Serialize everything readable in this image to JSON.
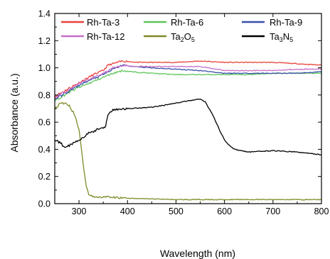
{
  "chart_data": {
    "type": "line",
    "title": "",
    "xlabel": "Wavelength (nm)",
    "ylabel": "Absorbance  (a.u.)",
    "xlim": [
      250,
      800
    ],
    "ylim": [
      0.0,
      1.4
    ],
    "x_ticks": [
      300,
      400,
      500,
      600,
      700,
      800
    ],
    "x_tick_labels": [
      "300",
      "400",
      "500",
      "600",
      "700",
      "800"
    ],
    "y_ticks": [
      0.0,
      0.2,
      0.4,
      0.6,
      0.8,
      1.0,
      1.2,
      1.4
    ],
    "y_tick_labels": [
      "0.0",
      "0.2",
      "0.4",
      "0.6",
      "0.8",
      "1.0",
      "1.2",
      "1.4"
    ],
    "grid": false,
    "legend_position": "top",
    "series": [
      {
        "name": "Rh-Ta-3",
        "color": "#e8423b",
        "x": [
          250,
          270,
          290,
          310,
          330,
          350,
          360,
          370,
          390,
          420,
          450,
          500,
          550,
          600,
          650,
          700,
          750,
          800
        ],
        "y": [
          0.79,
          0.83,
          0.87,
          0.91,
          0.95,
          0.98,
          1.02,
          1.03,
          1.05,
          1.04,
          1.04,
          1.04,
          1.05,
          1.04,
          1.04,
          1.04,
          1.03,
          1.02
        ]
      },
      {
        "name": "Rh-Ta-6",
        "color": "#5ec65a",
        "x": [
          250,
          270,
          290,
          310,
          330,
          350,
          370,
          390,
          410,
          450,
          500,
          550,
          600,
          650,
          700,
          750,
          800
        ],
        "y": [
          0.76,
          0.8,
          0.84,
          0.87,
          0.9,
          0.93,
          0.96,
          0.98,
          0.97,
          0.96,
          0.95,
          0.95,
          0.95,
          0.95,
          0.96,
          0.96,
          0.96
        ]
      },
      {
        "name": "Rh-Ta-9",
        "color": "#3a4fa8",
        "x": [
          250,
          270,
          290,
          310,
          330,
          350,
          370,
          390,
          410,
          450,
          500,
          550,
          600,
          650,
          700,
          750,
          800
        ],
        "y": [
          0.77,
          0.81,
          0.85,
          0.89,
          0.92,
          0.95,
          0.99,
          1.02,
          1.01,
          1.0,
          0.99,
          0.98,
          0.96,
          0.96,
          0.96,
          0.96,
          0.97
        ]
      },
      {
        "name": "Rh-Ta-12",
        "color": "#c66fc8",
        "x": [
          250,
          270,
          290,
          310,
          330,
          350,
          370,
          390,
          410,
          450,
          500,
          550,
          600,
          650,
          700,
          750,
          800
        ],
        "y": [
          0.78,
          0.82,
          0.86,
          0.9,
          0.93,
          0.96,
          1.0,
          1.02,
          1.01,
          1.01,
          1.01,
          1.01,
          0.98,
          0.98,
          0.98,
          0.99,
          0.99
        ]
      },
      {
        "name": "Ta2O5",
        "color": "#808a28",
        "x": [
          250,
          260,
          270,
          280,
          290,
          300,
          305,
          310,
          315,
          320,
          330,
          350,
          400,
          500,
          600,
          700,
          800
        ],
        "y": [
          0.7,
          0.73,
          0.74,
          0.72,
          0.66,
          0.55,
          0.4,
          0.25,
          0.13,
          0.07,
          0.05,
          0.05,
          0.04,
          0.03,
          0.03,
          0.03,
          0.03
        ]
      },
      {
        "name": "Ta3N5",
        "color": "#000000",
        "x": [
          250,
          260,
          270,
          280,
          290,
          300,
          310,
          320,
          330,
          340,
          350,
          355,
          360,
          370,
          400,
          450,
          500,
          530,
          550,
          560,
          575,
          590,
          600,
          610,
          620,
          650,
          700,
          750,
          800
        ],
        "y": [
          0.47,
          0.45,
          0.42,
          0.43,
          0.45,
          0.47,
          0.49,
          0.52,
          0.53,
          0.55,
          0.56,
          0.57,
          0.66,
          0.69,
          0.7,
          0.71,
          0.74,
          0.76,
          0.77,
          0.75,
          0.66,
          0.54,
          0.47,
          0.43,
          0.4,
          0.38,
          0.39,
          0.38,
          0.36
        ]
      }
    ],
    "legend": [
      {
        "text": "Rh-Ta-3",
        "series": 0
      },
      {
        "text": "Rh-Ta-6",
        "series": 1
      },
      {
        "text": "Rh-Ta-9",
        "series": 2
      },
      {
        "text": "Rh-Ta-12",
        "series": 3
      },
      {
        "text": "Ta2O5",
        "series": 4,
        "base": "Ta",
        "sub1": "2",
        "mid": "O",
        "sub2": "5"
      },
      {
        "text": "Ta3N5",
        "series": 5,
        "base": "Ta",
        "sub1": "3",
        "mid": "N",
        "sub2": "5"
      }
    ]
  }
}
